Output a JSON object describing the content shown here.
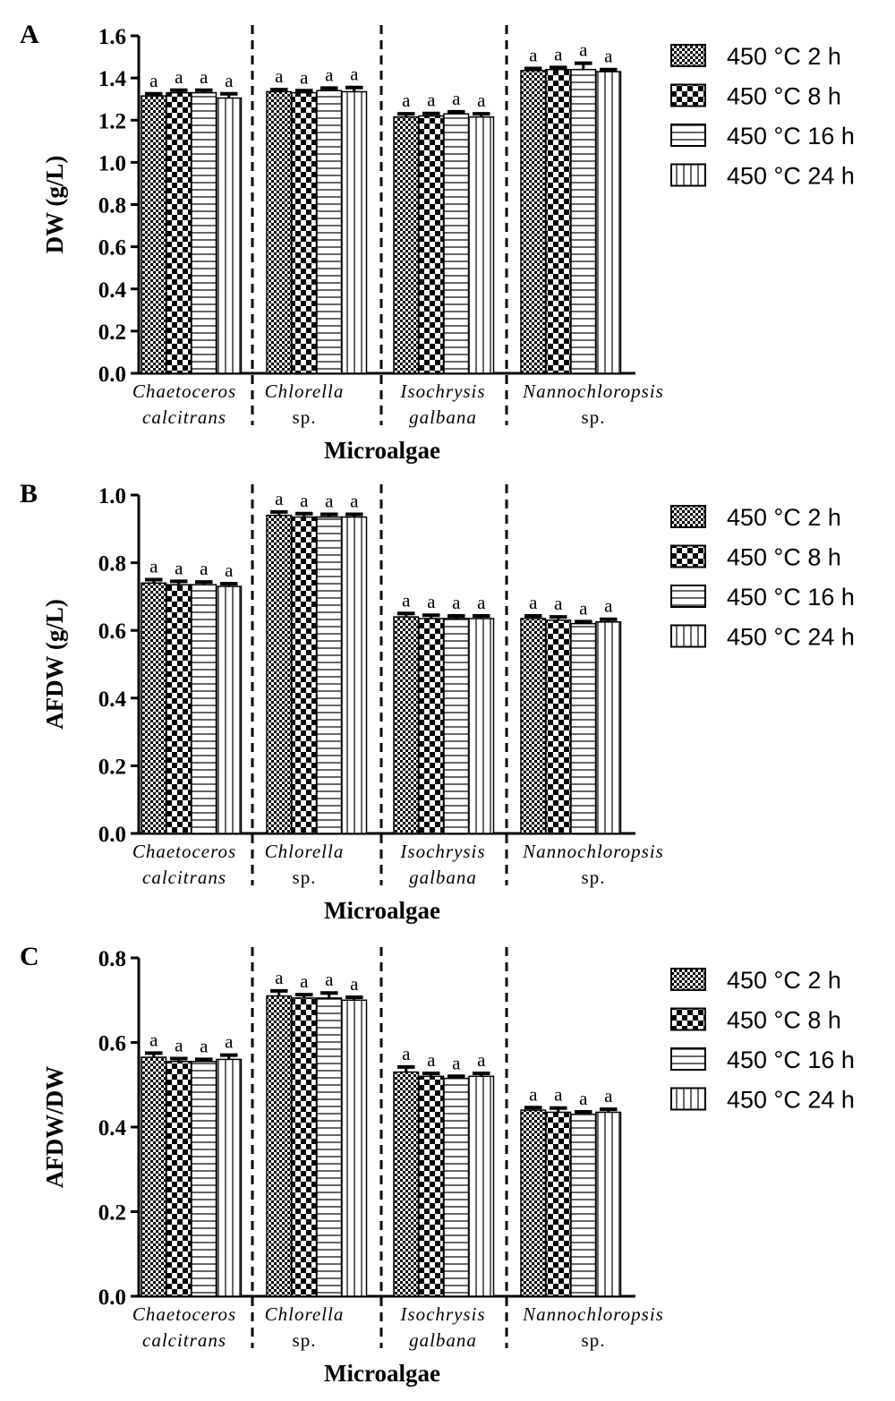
{
  "figure": {
    "legend": [
      "450 °C 2 h",
      "450 °C 8 h",
      "450 °C 16 h",
      "450 °C 24 h"
    ],
    "categories": [
      {
        "line1": "Chaetoceros",
        "line2": "calcitrans",
        "italic2": true
      },
      {
        "line1": "Chlorella",
        "line2": "sp.",
        "italic2": false
      },
      {
        "line1": "Isochrysis",
        "line2": "galbana",
        "italic2": true
      },
      {
        "line1": "Nannochloropsis",
        "line2": "sp.",
        "italic2": false
      }
    ],
    "significance_label": "a"
  },
  "chart_data": [
    {
      "panel": "A",
      "type": "bar",
      "title": "",
      "xlabel": "Microalgae",
      "ylabel": "DW (g/L)",
      "ylim": [
        0,
        1.6
      ],
      "yticks": [
        "0.0",
        "0.2",
        "0.4",
        "0.6",
        "0.8",
        "1.0",
        "1.2",
        "1.4",
        "1.6"
      ],
      "categories": [
        "Chaetoceros calcitrans",
        "Chlorella sp.",
        "Isochrysis galbana",
        "Nannochloropsis sp."
      ],
      "series": [
        {
          "name": "450 °C 2 h",
          "values": [
            1.315,
            1.335,
            1.215,
            1.435
          ],
          "errors": [
            0.01,
            0.01,
            0.015,
            0.01
          ]
        },
        {
          "name": "450 °C 8 h",
          "values": [
            1.33,
            1.33,
            1.22,
            1.44
          ],
          "errors": [
            0.012,
            0.01,
            0.012,
            0.01
          ]
        },
        {
          "name": "450 °C 16 h",
          "values": [
            1.33,
            1.34,
            1.23,
            1.44
          ],
          "errors": [
            0.012,
            0.012,
            0.01,
            0.03
          ]
        },
        {
          "name": "450 °C 24 h",
          "values": [
            1.305,
            1.335,
            1.215,
            1.43
          ],
          "errors": [
            0.02,
            0.02,
            0.015,
            0.01
          ]
        }
      ]
    },
    {
      "panel": "B",
      "type": "bar",
      "title": "",
      "xlabel": "Microalgae",
      "ylabel": "AFDW (g/L)",
      "ylim": [
        0,
        1.0
      ],
      "yticks": [
        "0.0",
        "0.2",
        "0.4",
        "0.6",
        "0.8",
        "1.0"
      ],
      "categories": [
        "Chaetoceros calcitrans",
        "Chlorella sp.",
        "Isochrysis galbana",
        "Nannochloropsis sp."
      ],
      "series": [
        {
          "name": "450 °C 2 h",
          "values": [
            0.74,
            0.94,
            0.64,
            0.635
          ],
          "errors": [
            0.01,
            0.01,
            0.01,
            0.008
          ]
        },
        {
          "name": "450 °C 8 h",
          "values": [
            0.735,
            0.935,
            0.635,
            0.63
          ],
          "errors": [
            0.01,
            0.01,
            0.01,
            0.01
          ]
        },
        {
          "name": "450 °C 16 h",
          "values": [
            0.735,
            0.935,
            0.635,
            0.62
          ],
          "errors": [
            0.008,
            0.008,
            0.008,
            0.006
          ]
        },
        {
          "name": "450 °C 24 h",
          "values": [
            0.73,
            0.935,
            0.635,
            0.625
          ],
          "errors": [
            0.008,
            0.008,
            0.008,
            0.008
          ]
        }
      ]
    },
    {
      "panel": "C",
      "type": "bar",
      "title": "",
      "xlabel": "Microalgae",
      "ylabel": "AFDW/DW",
      "ylim": [
        0,
        0.8
      ],
      "yticks": [
        "0.0",
        "0.2",
        "0.4",
        "0.6",
        "0.8"
      ],
      "categories": [
        "Chaetoceros calcitrans",
        "Chlorella sp.",
        "Isochrysis galbana",
        "Nannochloropsis sp."
      ],
      "series": [
        {
          "name": "450 °C 2 h",
          "values": [
            0.565,
            0.71,
            0.53,
            0.44
          ],
          "errors": [
            0.01,
            0.012,
            0.012,
            0.006
          ]
        },
        {
          "name": "450 °C 8 h",
          "values": [
            0.555,
            0.705,
            0.52,
            0.435
          ],
          "errors": [
            0.007,
            0.008,
            0.007,
            0.01
          ]
        },
        {
          "name": "450 °C 16 h",
          "values": [
            0.555,
            0.705,
            0.515,
            0.43
          ],
          "errors": [
            0.005,
            0.012,
            0.005,
            0.006
          ]
        },
        {
          "name": "450 °C 24 h",
          "values": [
            0.56,
            0.7,
            0.52,
            0.435
          ],
          "errors": [
            0.01,
            0.007,
            0.007,
            0.007
          ]
        }
      ]
    }
  ]
}
